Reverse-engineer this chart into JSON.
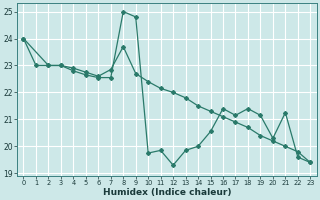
{
  "xlabel": "Humidex (Indice chaleur)",
  "xlim": [
    -0.5,
    23.5
  ],
  "ylim": [
    18.9,
    25.3
  ],
  "yticks": [
    19,
    20,
    21,
    22,
    23,
    24,
    25
  ],
  "xticks": [
    0,
    1,
    2,
    3,
    4,
    5,
    6,
    7,
    8,
    9,
    10,
    11,
    12,
    13,
    14,
    15,
    16,
    17,
    18,
    19,
    20,
    21,
    22,
    23
  ],
  "bg_color": "#cde8e8",
  "grid_color": "#b0d4d4",
  "line_color": "#2a7a6a",
  "series1_x": [
    0,
    1,
    2,
    3,
    4,
    5,
    6,
    7,
    8,
    9,
    10,
    11,
    12,
    13,
    14,
    15,
    16,
    17,
    18,
    19,
    20,
    21,
    22,
    23
  ],
  "series1_y": [
    24.0,
    23.0,
    23.0,
    23.0,
    22.8,
    22.65,
    22.55,
    22.55,
    25.0,
    24.8,
    19.75,
    19.85,
    19.3,
    19.85,
    20.0,
    20.55,
    21.4,
    21.15,
    21.4,
    21.15,
    20.3,
    21.25,
    19.6,
    19.4
  ],
  "series2_x": [
    0,
    2,
    3,
    4,
    5,
    6,
    7,
    8,
    9,
    10,
    11,
    12,
    13,
    14,
    15,
    16,
    17,
    18,
    19,
    20,
    21,
    22,
    23
  ],
  "series2_y": [
    24.0,
    23.0,
    23.0,
    22.9,
    22.75,
    22.6,
    22.85,
    23.7,
    22.7,
    22.4,
    22.15,
    22.0,
    21.8,
    21.5,
    21.3,
    21.1,
    20.9,
    20.7,
    20.4,
    20.2,
    20.0,
    19.8,
    19.4
  ]
}
